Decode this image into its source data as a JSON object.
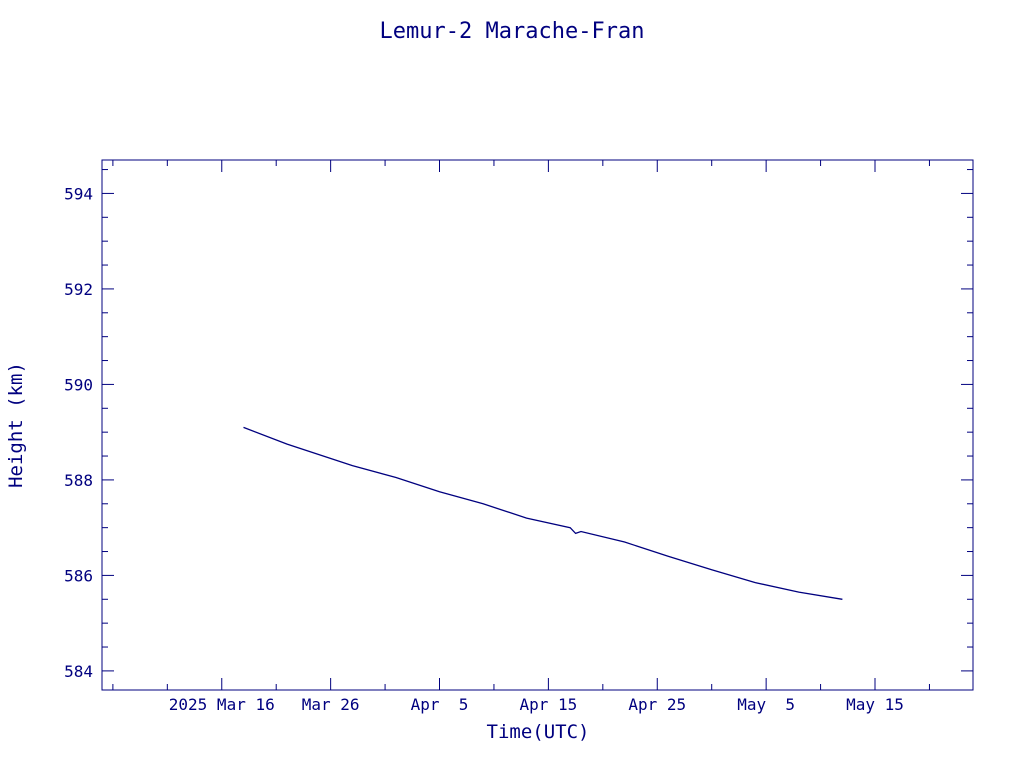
{
  "colors": {
    "ink": "#00007f",
    "background": "#ffffff"
  },
  "chart_data": {
    "type": "line",
    "title": "Lemur-2 Marache-Fran",
    "xlabel": "Time(UTC)",
    "ylabel": "Height (km)",
    "xlim": [
      "2025-03-05",
      "2025-05-24"
    ],
    "ylim": [
      583.6,
      594.7
    ],
    "grid": false,
    "x_ticks": [
      {
        "date": "2025-03-16",
        "label": "2025 Mar 16"
      },
      {
        "date": "2025-03-26",
        "label": "Mar 26"
      },
      {
        "date": "2025-04-05",
        "label": "Apr  5"
      },
      {
        "date": "2025-04-15",
        "label": "Apr 15"
      },
      {
        "date": "2025-04-25",
        "label": "Apr 25"
      },
      {
        "date": "2025-05-05",
        "label": "May  5"
      },
      {
        "date": "2025-05-15",
        "label": "May 15"
      }
    ],
    "y_ticks": [
      584,
      586,
      588,
      590,
      592,
      594
    ],
    "series": [
      {
        "x": [
          "2025-03-18",
          "2025-03-22",
          "2025-03-28",
          "2025-04-01",
          "2025-04-05",
          "2025-04-09",
          "2025-04-13",
          "2025-04-17",
          "2025-04-17 12:00",
          "2025-04-18",
          "2025-04-22",
          "2025-04-26",
          "2025-04-30",
          "2025-05-04",
          "2025-05-08",
          "2025-05-12"
        ],
        "y": [
          589.1,
          588.75,
          588.3,
          588.05,
          587.75,
          587.5,
          587.2,
          587.0,
          586.88,
          586.92,
          586.7,
          586.4,
          586.12,
          585.85,
          585.65,
          585.5
        ]
      }
    ]
  }
}
